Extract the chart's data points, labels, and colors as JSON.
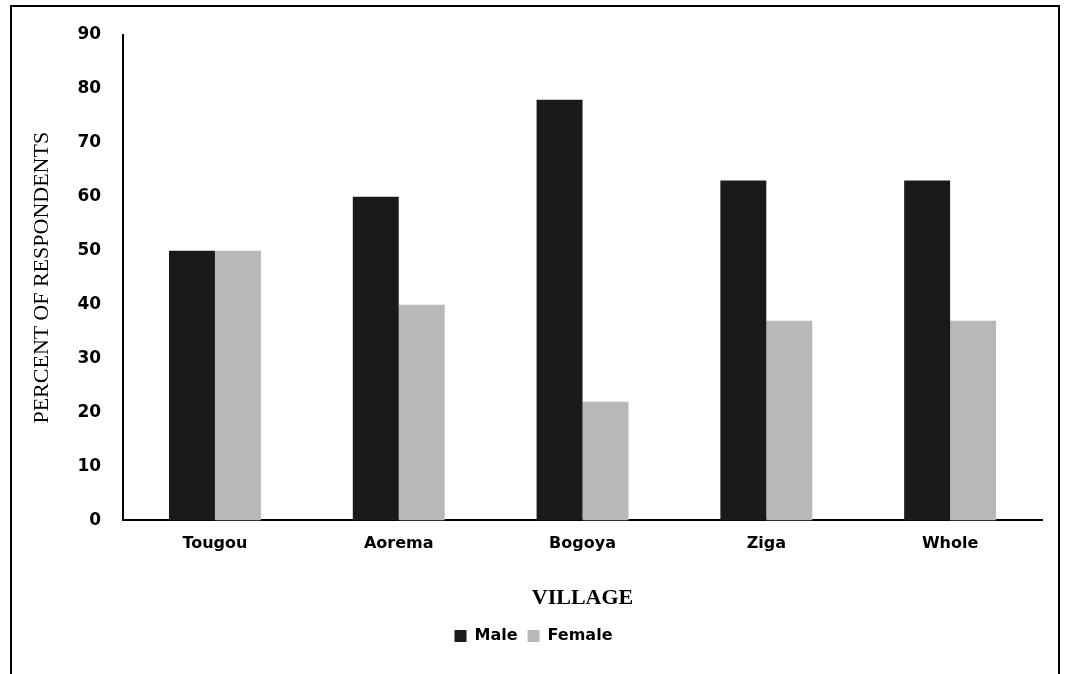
{
  "chart_data": {
    "type": "bar",
    "xlabel": "VILLAGE",
    "ylabel": "PERCENT OF RESPONDENTS",
    "categories": [
      "Tougou",
      "Aorema",
      "Bogoya",
      "Ziga",
      "Whole"
    ],
    "series": [
      {
        "name": "Male",
        "color": "#1a1a1a",
        "values": [
          50,
          60,
          78,
          63,
          63
        ]
      },
      {
        "name": "Female",
        "color": "#b8b8b8",
        "values": [
          50,
          40,
          22,
          37,
          37
        ]
      }
    ],
    "ylim": [
      0,
      90
    ],
    "yticks": [
      0,
      10,
      20,
      30,
      40,
      50,
      60,
      70,
      80,
      90
    ],
    "grid": false,
    "legend": "bottom"
  }
}
